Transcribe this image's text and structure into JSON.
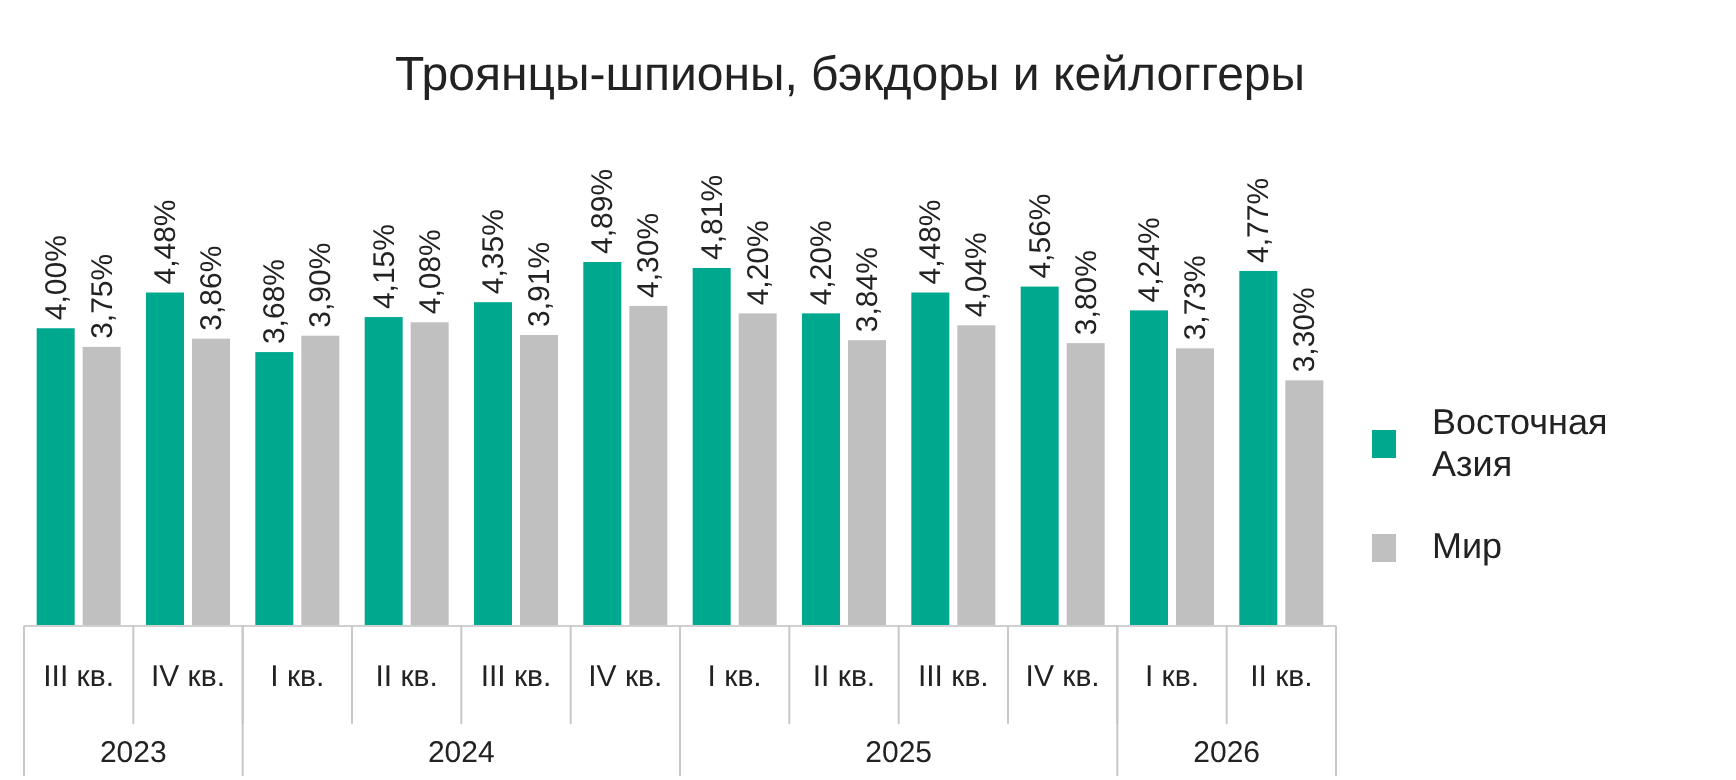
{
  "chart_data": {
    "type": "bar",
    "title": "Троянцы-шпионы, бэкдоры и кейлоггеры",
    "categories": [
      "III кв.",
      "IV кв.",
      "I кв.",
      "II кв.",
      "III кв.",
      "IV кв.",
      "I кв.",
      "II кв.",
      "III кв.",
      "IV кв.",
      "I кв.",
      "II кв."
    ],
    "annotations": [
      "2023",
      "2024",
      "2025",
      "2026"
    ],
    "series": [
      {
        "name": "Восточная Азия",
        "color": "#00a88e",
        "values": [
          4.0,
          4.48,
          3.68,
          4.15,
          4.35,
          4.89,
          4.81,
          4.2,
          4.48,
          4.56,
          4.24,
          4.77
        ],
        "value_labels": [
          "4,00%",
          "4,48%",
          "3,68%",
          "4,15%",
          "4,35%",
          "4,89%",
          "4,81%",
          "4,20%",
          "4,48%",
          "4,56%",
          "4,24%",
          "4,77%"
        ]
      },
      {
        "name": "Мир",
        "color": "#c0c0c0",
        "values": [
          3.75,
          3.86,
          3.9,
          4.08,
          3.91,
          4.3,
          4.2,
          3.84,
          4.04,
          3.8,
          3.73,
          3.3
        ],
        "value_labels": [
          "3,75%",
          "3,86%",
          "3,90%",
          "4,08%",
          "3,91%",
          "4,30%",
          "4,20%",
          "3,84%",
          "4,04%",
          "3,80%",
          "3,73%",
          "3,30%"
        ]
      }
    ],
    "legend": "right"
  }
}
